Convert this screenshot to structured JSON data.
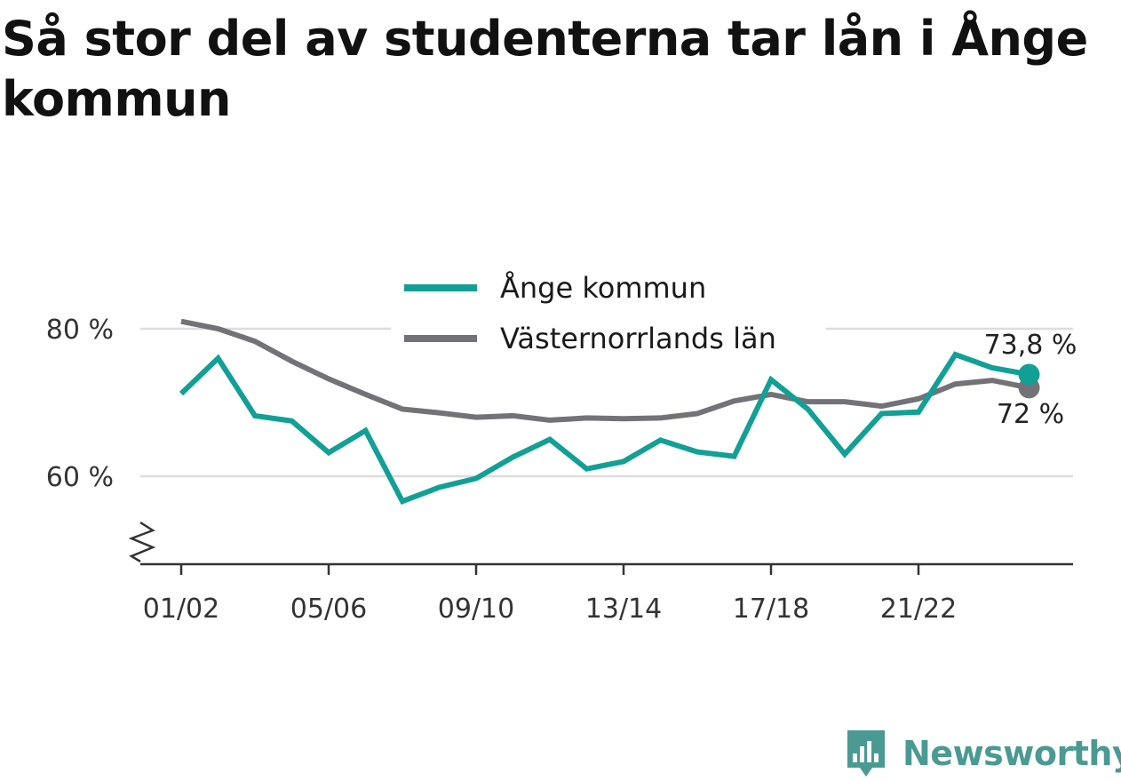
{
  "title": "Så stor del av studenterna tar lån i Ånge kommun",
  "brand": {
    "name": "Newsworthy",
    "icon": "newsworthy-logo-icon",
    "color": "#4a9a93"
  },
  "chart_data": {
    "type": "line",
    "title": "Så stor del av studenterna tar lån i Ånge kommun",
    "xlabel": "",
    "ylabel": "",
    "ylim": [
      48,
      82
    ],
    "y_ticks": [
      {
        "value": 60,
        "label": "60 %"
      },
      {
        "value": 80,
        "label": "80 %"
      }
    ],
    "x_ticks": [
      {
        "index": 0,
        "label": "01/02"
      },
      {
        "index": 4,
        "label": "05/06"
      },
      {
        "index": 8,
        "label": "09/10"
      },
      {
        "index": 12,
        "label": "13/14"
      },
      {
        "index": 16,
        "label": "17/18"
      },
      {
        "index": 20,
        "label": "21/22"
      }
    ],
    "x": [
      "01/02",
      "02/03",
      "03/04",
      "04/05",
      "05/06",
      "06/07",
      "07/08",
      "08/09",
      "09/10",
      "10/11",
      "11/12",
      "12/13",
      "13/14",
      "14/15",
      "15/16",
      "16/17",
      "17/18",
      "18/19",
      "19/20",
      "20/21",
      "21/22",
      "22/23",
      "23/24",
      "24/25"
    ],
    "grid": "horizontal",
    "axis_break": true,
    "legend_position": "top-center",
    "series": [
      {
        "name": "Ånge kommun",
        "color": "#12a096",
        "values": [
          71.2,
          76.0,
          68.2,
          67.5,
          63.2,
          66.2,
          56.6,
          58.5,
          59.7,
          62.6,
          65.0,
          61.0,
          62.0,
          64.9,
          63.3,
          62.7,
          73.1,
          69.1,
          63.0,
          68.5,
          68.7,
          76.5,
          74.7,
          73.8
        ],
        "end_label": "73,8 %"
      },
      {
        "name": "Västernorrlands län",
        "color": "#737277",
        "values": [
          81.0,
          80.0,
          78.3,
          75.6,
          73.2,
          71.1,
          69.1,
          68.6,
          68.0,
          68.2,
          67.6,
          67.9,
          67.8,
          67.9,
          68.5,
          70.2,
          71.1,
          70.1,
          70.1,
          69.5,
          70.5,
          72.5,
          73.0,
          72.0
        ],
        "end_label": "72 %"
      }
    ]
  }
}
